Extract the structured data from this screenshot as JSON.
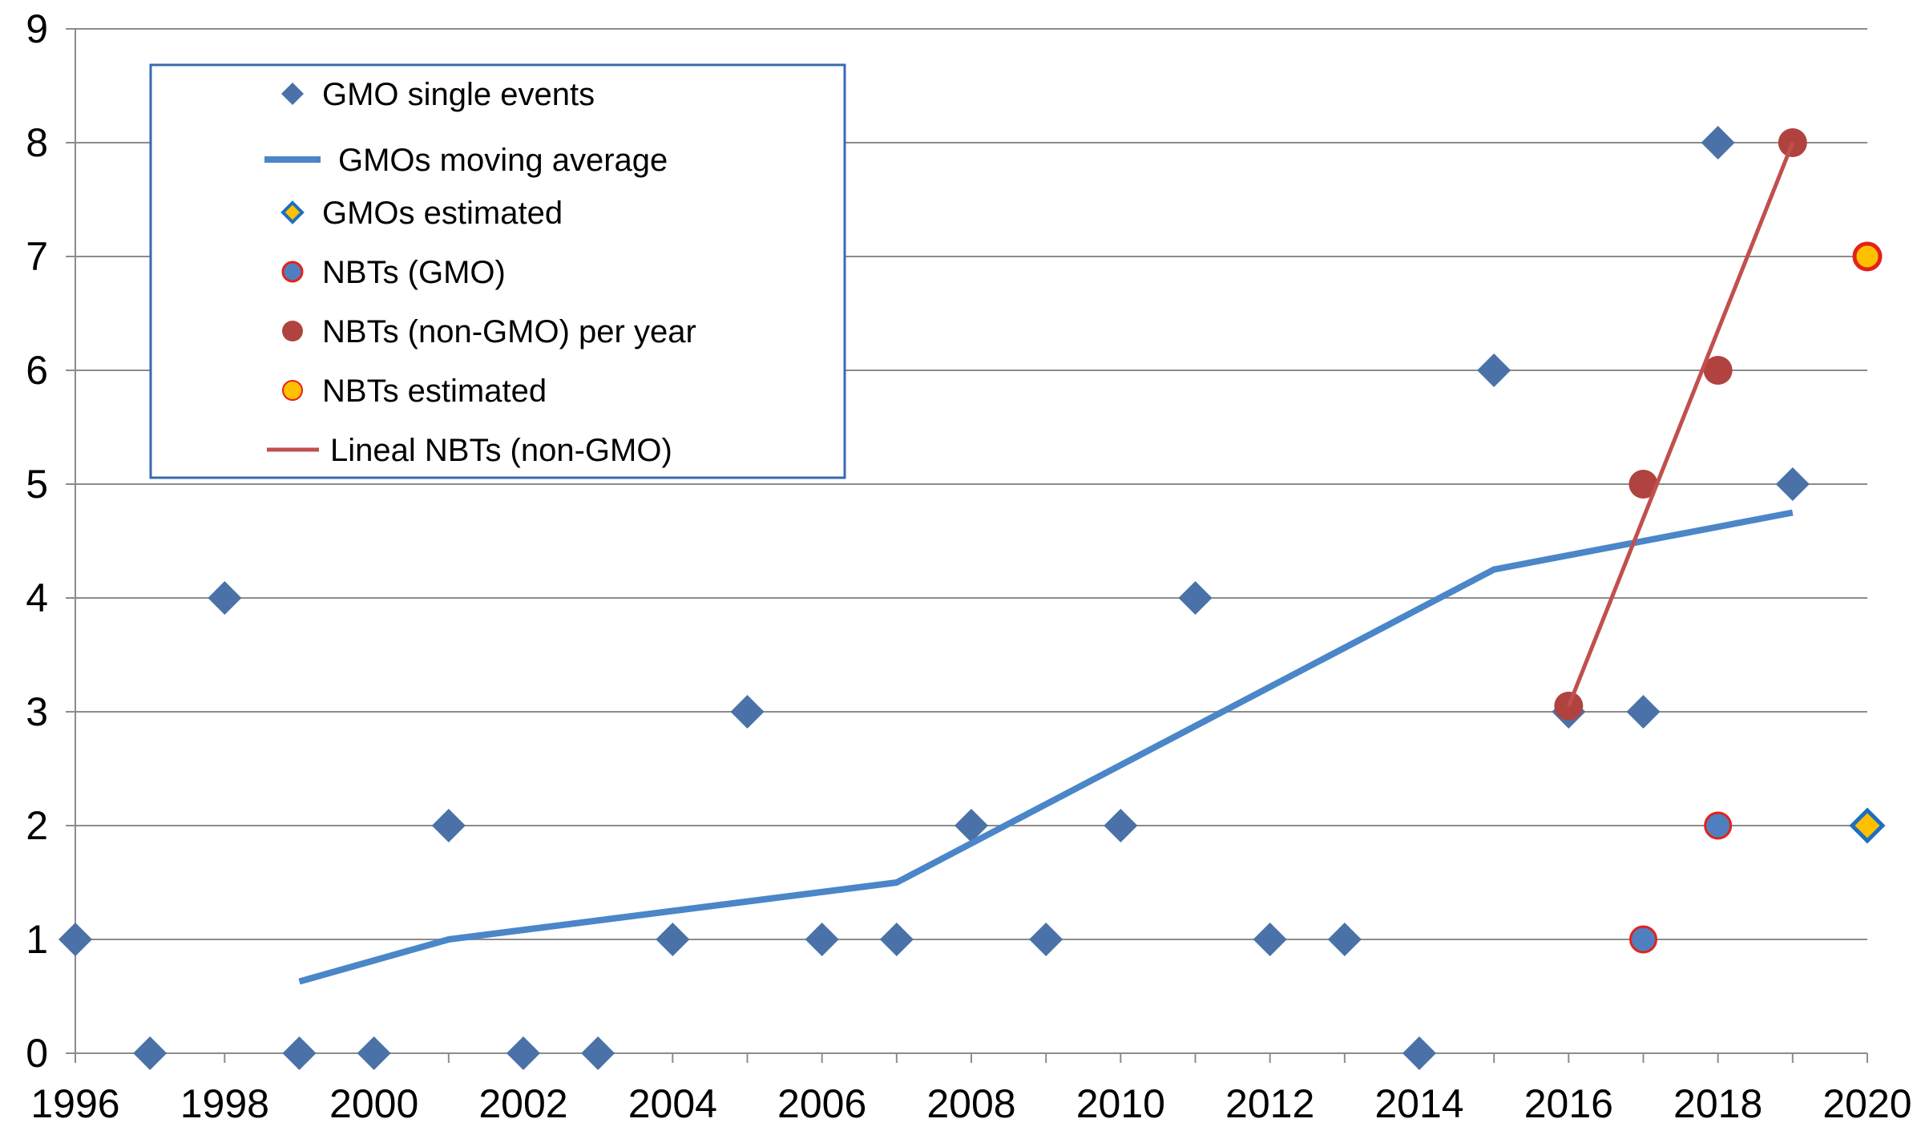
{
  "chart_data": {
    "type": "scatter",
    "title": "",
    "xlabel": "",
    "ylabel": "",
    "xlim": [
      1996,
      2020
    ],
    "ylim": [
      0,
      9
    ],
    "x_ticks": [
      "1996",
      "1998",
      "2000",
      "2002",
      "2004",
      "2006",
      "2008",
      "2010",
      "2012",
      "2014",
      "2016",
      "2018",
      "2020"
    ],
    "y_ticks": [
      "0",
      "1",
      "2",
      "3",
      "4",
      "5",
      "6",
      "7",
      "8",
      "9"
    ],
    "grid": "horizontal",
    "legend_position": "top-left",
    "legend": [
      {
        "key": "gmo_single",
        "label": "GMO single events"
      },
      {
        "key": "gmo_avg",
        "label": "GMOs moving average"
      },
      {
        "key": "gmo_est",
        "label": "GMOs estimated"
      },
      {
        "key": "nbt_gmo",
        "label": "NBTs (GMO)"
      },
      {
        "key": "nbt_nongmo",
        "label": "NBTs (non-GMO) per year"
      },
      {
        "key": "nbt_est",
        "label": "NBTs estimated"
      },
      {
        "key": "nbt_lineal",
        "label": "Lineal NBTs (non-GMO)"
      }
    ],
    "series": [
      {
        "key": "gmo_single",
        "name": "GMO single events",
        "kind": "diamond",
        "color": "#4a72a8",
        "points": [
          [
            1996,
            1
          ],
          [
            1997,
            0
          ],
          [
            1998,
            4
          ],
          [
            1999,
            0
          ],
          [
            2000,
            0
          ],
          [
            2001,
            2
          ],
          [
            2002,
            0
          ],
          [
            2003,
            0
          ],
          [
            2004,
            1
          ],
          [
            2005,
            3
          ],
          [
            2006,
            1
          ],
          [
            2007,
            1
          ],
          [
            2008,
            2
          ],
          [
            2009,
            1
          ],
          [
            2010,
            2
          ],
          [
            2011,
            4
          ],
          [
            2012,
            1
          ],
          [
            2013,
            1
          ],
          [
            2014,
            0
          ],
          [
            2015,
            6
          ],
          [
            2016,
            3
          ],
          [
            2017,
            3
          ],
          [
            2018,
            8
          ],
          [
            2019,
            5
          ]
        ]
      },
      {
        "key": "gmo_avg",
        "name": "GMOs moving average",
        "kind": "line",
        "color": "#4a86c8",
        "points": [
          [
            1999,
            0.63
          ],
          [
            2001,
            1.0
          ],
          [
            2007,
            1.5
          ],
          [
            2015,
            4.25
          ],
          [
            2019,
            4.75
          ]
        ]
      },
      {
        "key": "gmo_est",
        "name": "GMOs estimated",
        "kind": "diamond-est",
        "color": "#ffc000",
        "stroke": "#1f6fc0",
        "points": [
          [
            2020,
            2
          ]
        ]
      },
      {
        "key": "nbt_nongmo",
        "name": "NBTs (non-GMO) per year",
        "kind": "circle",
        "color": "#b0433f",
        "points": [
          [
            2016,
            3.05
          ],
          [
            2017,
            5
          ],
          [
            2018,
            6
          ],
          [
            2019,
            8
          ]
        ]
      },
      {
        "key": "nbt_lineal",
        "name": "Lineal NBTs (non-GMO)",
        "kind": "trend",
        "color": "#c0504d",
        "points": [
          [
            2016,
            3.05
          ],
          [
            2019,
            8
          ]
        ]
      },
      {
        "key": "nbt_gmo",
        "name": "NBTs (GMO)",
        "kind": "circle-ring",
        "color": "#4f7fbf",
        "stroke": "#e32219",
        "points": [
          [
            2017,
            1
          ],
          [
            2018,
            2
          ]
        ]
      },
      {
        "key": "nbt_est",
        "name": "NBTs estimated",
        "kind": "circle-est",
        "color": "#ffc000",
        "stroke": "#e32219",
        "points": [
          [
            2020,
            7
          ]
        ]
      }
    ]
  }
}
